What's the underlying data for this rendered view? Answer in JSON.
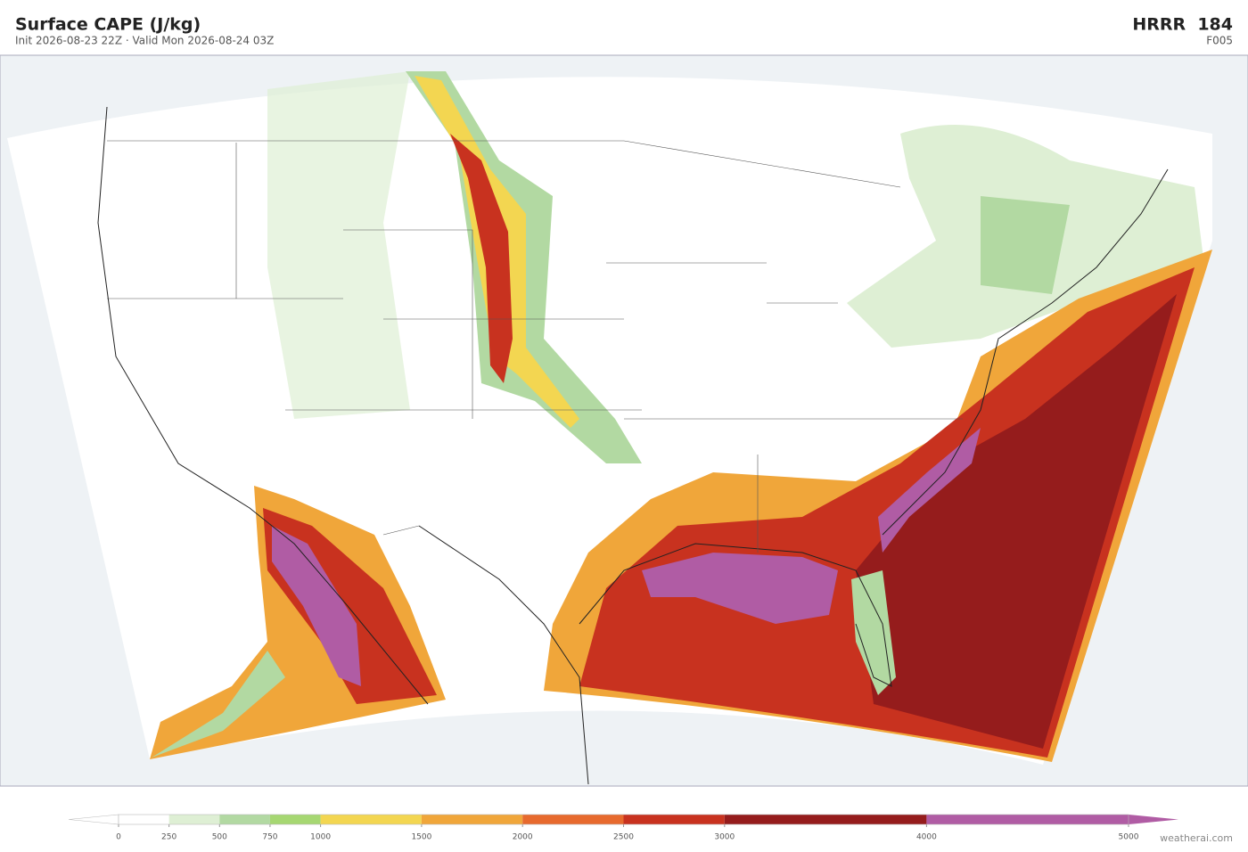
{
  "header": {
    "title": "Surface CAPE  (J/kg)",
    "subtitle": "Init 2026-08-23 22Z   ·   Valid Mon 2026-08-24 03Z",
    "model": "HRRR  184",
    "forecast_hour": "F005"
  },
  "colorbar": {
    "ticks": [
      0,
      250,
      500,
      750,
      1000,
      1500,
      2000,
      2500,
      3000,
      4000,
      5000
    ],
    "under_color": "#ffffff",
    "colors": [
      "#ffffff",
      "#deefd4",
      "#b2d9a2",
      "#a6d772",
      "#f3d651",
      "#f0a63a",
      "#e76a2e",
      "#c8321f",
      "#951c1c",
      "#b05ca4"
    ],
    "over_color": "#b05ca4"
  },
  "footer": {
    "credit": "weatherai.com"
  }
}
